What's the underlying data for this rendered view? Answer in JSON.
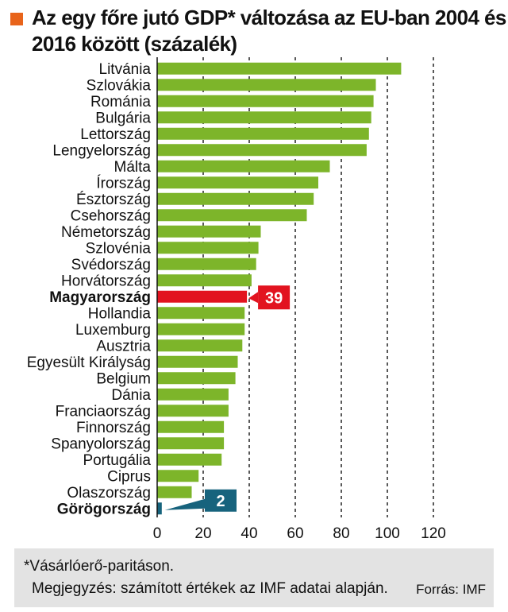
{
  "title": "Az egy főre jutó GDP* változása az EU-ban 2004 és 2016 között (százalék)",
  "colors": {
    "title_square": "#e8641b",
    "bar": "#7db52a",
    "highlight_bar": "#e2131f",
    "low_bar": "#17637d",
    "gridline": "#222222",
    "footer_bg": "#e3e3e3"
  },
  "chart_data": {
    "type": "bar",
    "orientation": "horizontal",
    "title": "Az egy főre jutó GDP* változása az EU-ban 2004 és 2016 között (százalék)",
    "categories": [
      "Litvánia",
      "Szlovákia",
      "Románia",
      "Bulgária",
      "Lettország",
      "Lengyelország",
      "Málta",
      "Írország",
      "Észtország",
      "Csehország",
      "Németország",
      "Szlovénia",
      "Svédország",
      "Horvátország",
      "Magyarország",
      "Hollandia",
      "Luxemburg",
      "Ausztria",
      "Egyesült Királyság",
      "Belgium",
      "Dánia",
      "Franciaország",
      "Finnország",
      "Spanyolország",
      "Portugália",
      "Ciprus",
      "Olaszország",
      "Görögország"
    ],
    "values": [
      106,
      95,
      94,
      93,
      92,
      91,
      75,
      70,
      68,
      65,
      45,
      44,
      43,
      41,
      39,
      38,
      38,
      37,
      35,
      34,
      31,
      31,
      29,
      29,
      28,
      18,
      15,
      2
    ],
    "bold_categories": [
      "Magyarország",
      "Görögország"
    ],
    "highlights": [
      {
        "category": "Magyarország",
        "label": "39",
        "color": "#e2131f"
      },
      {
        "category": "Görögország",
        "label": "2",
        "color": "#17637d"
      }
    ],
    "xlim": [
      0,
      120
    ],
    "xticks": [
      0,
      20,
      40,
      60,
      80,
      100,
      120
    ],
    "grid": "vertical dashed",
    "xlabel": "",
    "ylabel": ""
  },
  "footer": {
    "footnote": "*Vásárlóerő-paritáson.",
    "note": "Megjegyzés: számított értékek az IMF adatai alapján.",
    "source": "Forrás: IMF"
  }
}
